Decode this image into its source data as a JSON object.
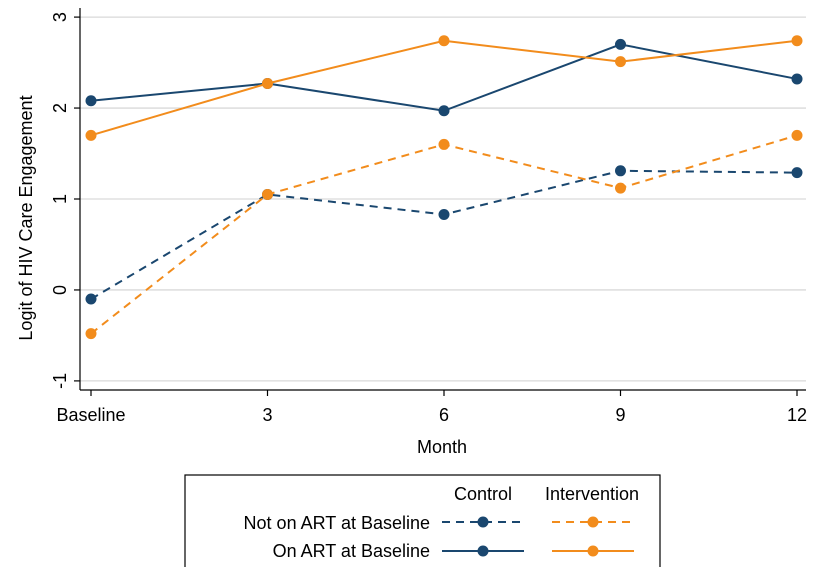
{
  "chart_data": {
    "type": "line",
    "xlabel": "Month",
    "ylabel": "Logit of HIV Care Engagement",
    "categories": [
      "Baseline",
      "3",
      "6",
      "9",
      "12"
    ],
    "ylim": [
      -1.1,
      3.1
    ],
    "yticks": [
      -1,
      0,
      1,
      2,
      3
    ],
    "grid": true,
    "legend_placement": "bottom",
    "legend": {
      "columns": [
        "Control",
        "Intervention"
      ],
      "rows": [
        "Not on ART at Baseline",
        "On ART at Baseline"
      ]
    },
    "series": [
      {
        "group": "Control",
        "row": "On ART at Baseline",
        "style": "solid",
        "color": "#1a476f",
        "values": [
          2.08,
          2.27,
          1.97,
          2.7,
          2.32
        ]
      },
      {
        "group": "Intervention",
        "row": "On ART at Baseline",
        "style": "solid",
        "color": "#f28c1c",
        "values": [
          1.7,
          2.27,
          2.74,
          2.51,
          2.74
        ]
      },
      {
        "group": "Control",
        "row": "Not on ART at Baseline",
        "style": "dashed",
        "color": "#1a476f",
        "values": [
          -0.1,
          1.05,
          0.83,
          1.31,
          1.29
        ]
      },
      {
        "group": "Intervention",
        "row": "Not on ART at Baseline",
        "style": "dashed",
        "color": "#f28c1c",
        "values": [
          -0.48,
          1.05,
          1.6,
          1.12,
          1.7
        ]
      }
    ]
  }
}
